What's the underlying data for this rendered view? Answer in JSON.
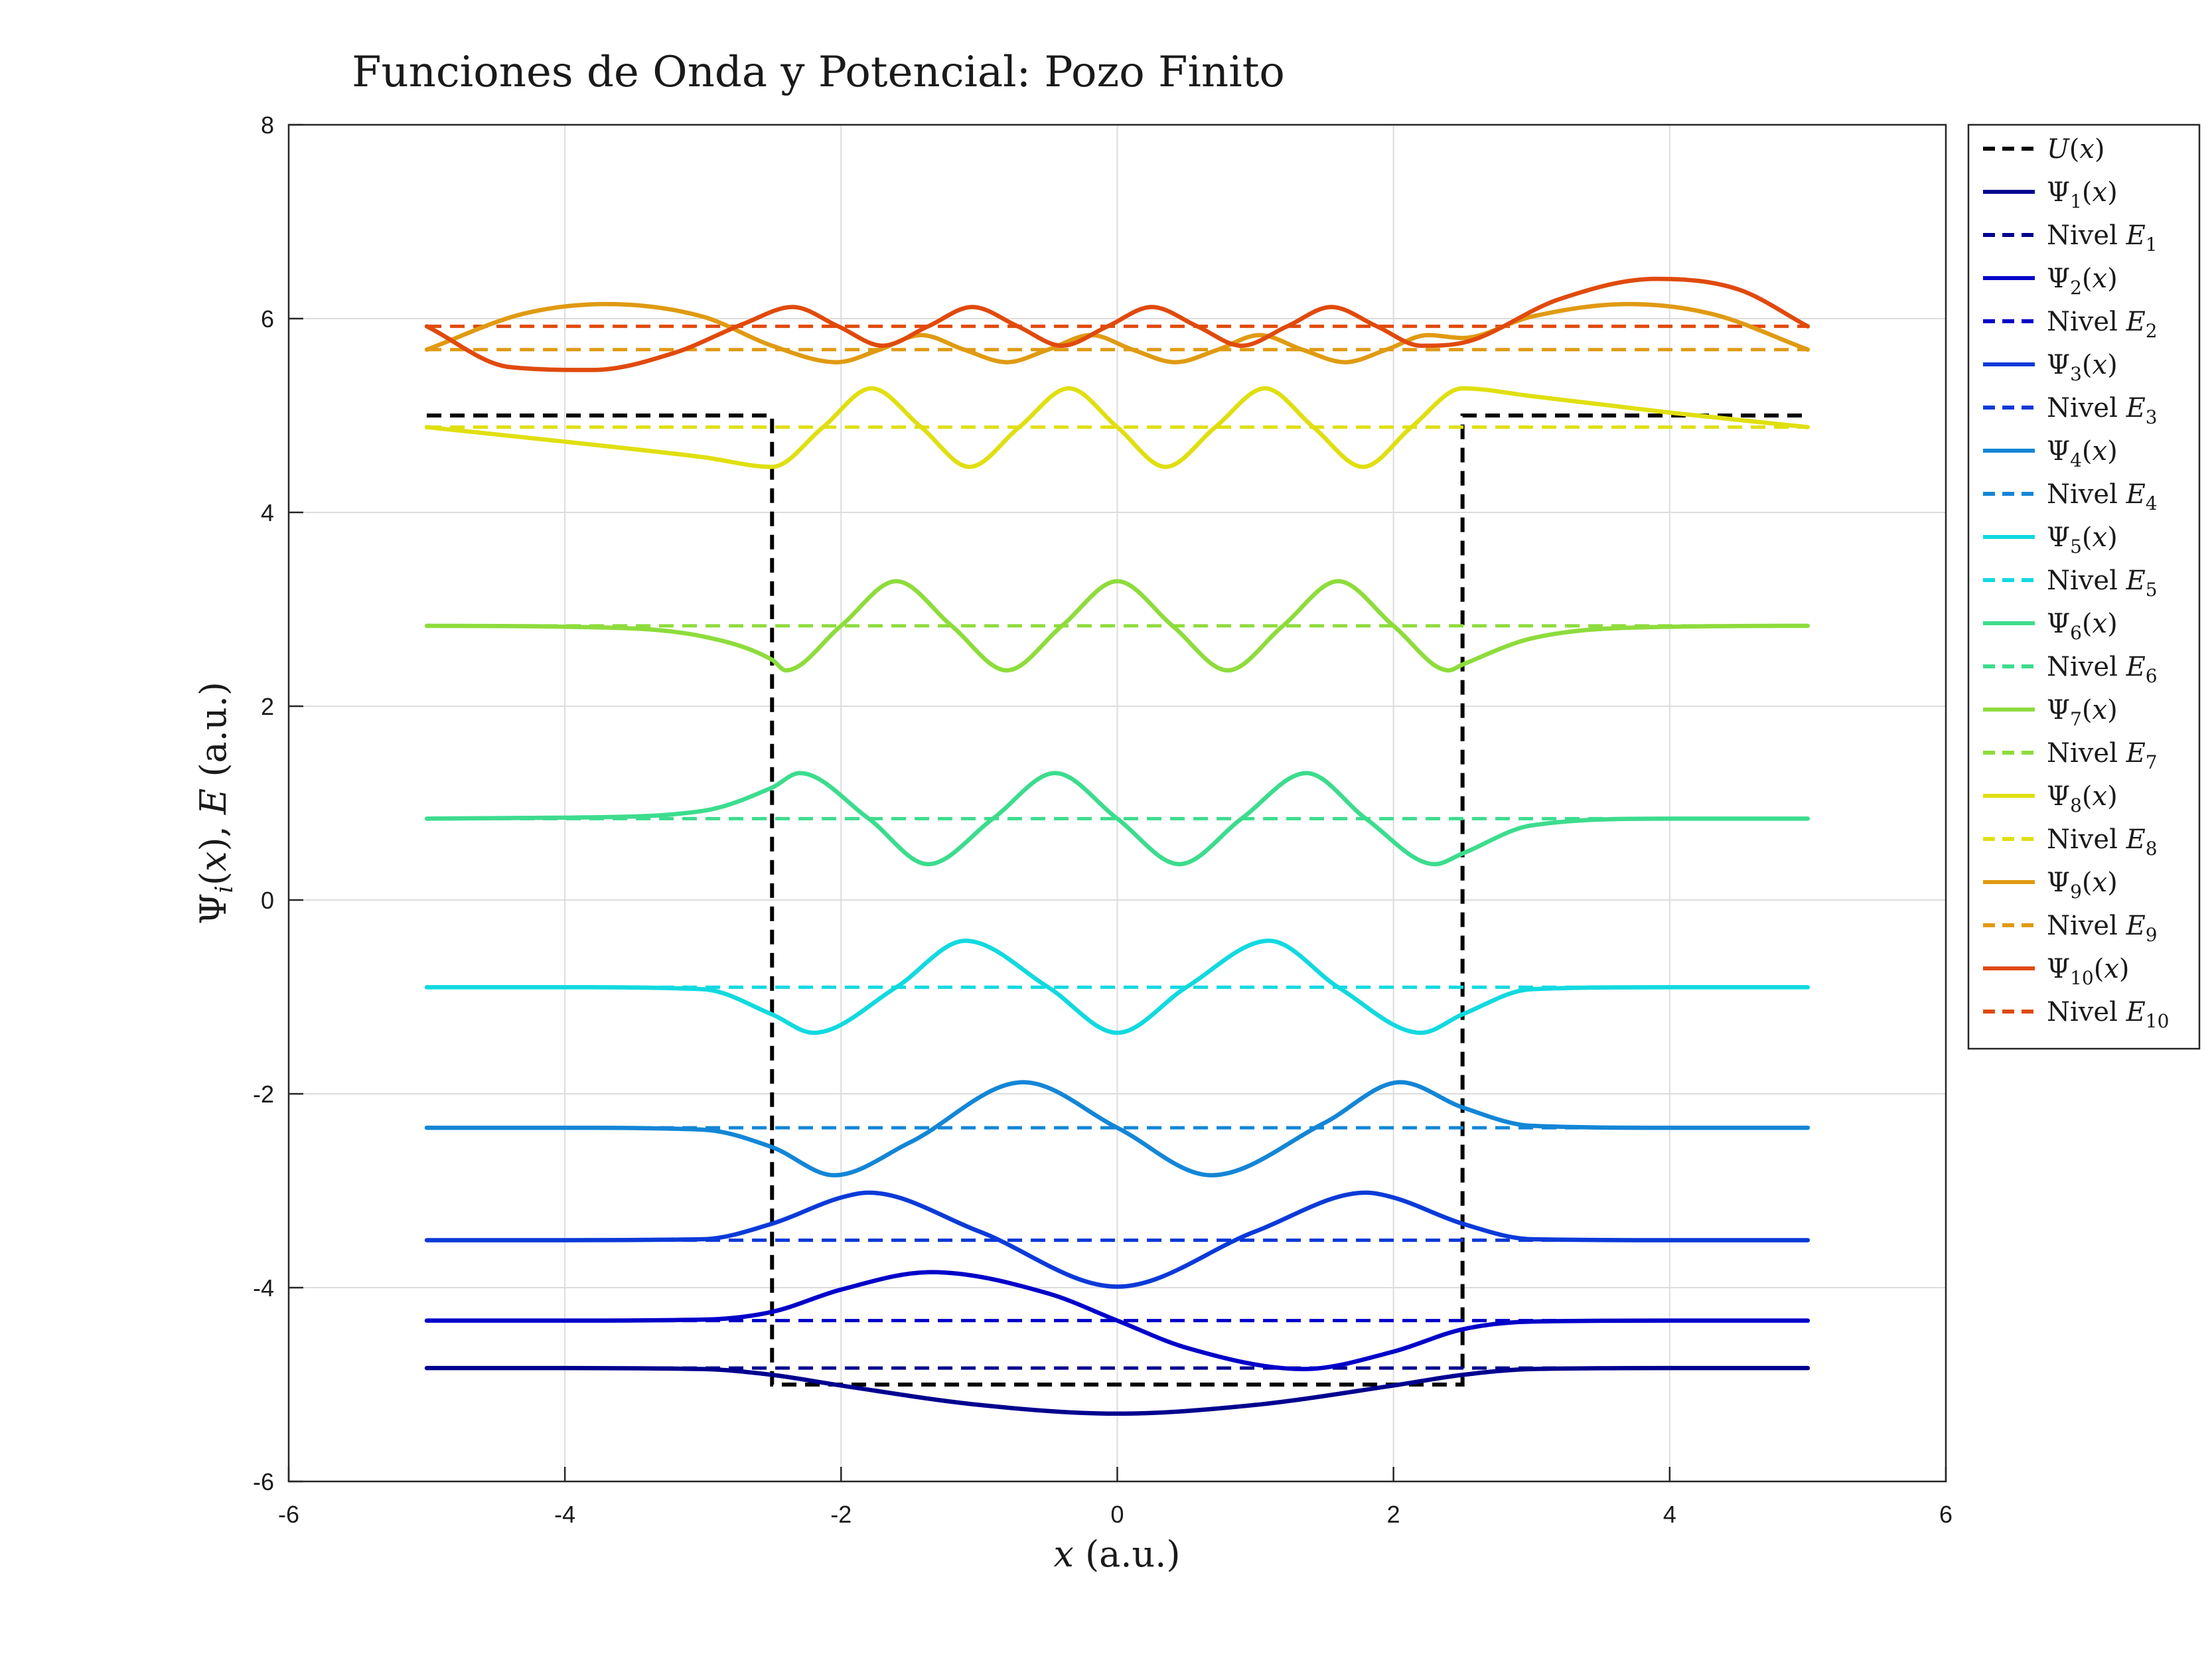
{
  "chart_data": {
    "type": "line",
    "title": "Funciones de Onda y Potencial: Pozo Finito",
    "xlabel": "x (a.u.)",
    "ylabel": "Ψ_i(x), E (a.u.)",
    "xlim": [
      -6,
      6
    ],
    "ylim": [
      -6,
      8
    ],
    "x_ticks": [
      "-6",
      "-4",
      "-2",
      "0",
      "2",
      "4",
      "6"
    ],
    "y_ticks": [
      "-6",
      "-4",
      "-2",
      "0",
      "2",
      "4",
      "6",
      "8"
    ],
    "grid": true,
    "legend_position": "outside-right",
    "potential": {
      "name": "U(x)",
      "color": "#000000",
      "x": [
        -5,
        -2.5,
        -2.5,
        2.5,
        2.5,
        5
      ],
      "y": [
        5,
        5,
        -5,
        -5,
        5,
        5
      ]
    },
    "states": [
      {
        "n": 1,
        "E": -4.83,
        "color": "#00008f",
        "psi_label": "Ψ1(x)",
        "level_label": "Nivel E1",
        "x": [
          -5,
          -4,
          -3,
          -2.5,
          -2,
          -1,
          0,
          1,
          2,
          2.5,
          3,
          4,
          5
        ],
        "y": [
          -4.83,
          -4.83,
          -4.84,
          -4.9,
          -5.01,
          -5.21,
          -5.3,
          -5.21,
          -5.01,
          -4.9,
          -4.84,
          -4.83,
          -4.83
        ]
      },
      {
        "n": 2,
        "E": -4.34,
        "color": "#0000c9",
        "psi_label": "Ψ2(x)",
        "level_label": "Nivel E2",
        "x": [
          -5,
          -4,
          -3,
          -2.5,
          -2,
          -1.35,
          -0.5,
          0,
          0.5,
          1.35,
          2,
          2.5,
          3,
          4,
          5
        ],
        "y": [
          -4.34,
          -4.34,
          -4.33,
          -4.25,
          -4.02,
          -3.84,
          -4.06,
          -4.34,
          -4.62,
          -4.84,
          -4.66,
          -4.43,
          -4.35,
          -4.34,
          -4.34
        ]
      },
      {
        "n": 3,
        "E": -3.51,
        "color": "#0b3ad8",
        "psi_label": "Ψ3(x)",
        "level_label": "Nivel E3",
        "x": [
          -5,
          -4,
          -3,
          -2.5,
          -2,
          -1.8,
          -1,
          0,
          1,
          1.8,
          2,
          2.5,
          3,
          4,
          5
        ],
        "y": [
          -3.51,
          -3.51,
          -3.5,
          -3.34,
          -3.07,
          -3.02,
          -3.42,
          -3.99,
          -3.42,
          -3.02,
          -3.07,
          -3.34,
          -3.5,
          -3.51,
          -3.51
        ]
      },
      {
        "n": 4,
        "E": -2.35,
        "color": "#1386d6",
        "psi_label": "Ψ4(x)",
        "level_label": "Nivel E4",
        "x": [
          -5,
          -4,
          -3,
          -2.5,
          -2.05,
          -1.5,
          -0.68,
          0,
          0.68,
          1.5,
          2.05,
          2.5,
          3,
          4,
          5
        ],
        "y": [
          -2.35,
          -2.35,
          -2.37,
          -2.55,
          -2.84,
          -2.5,
          -1.88,
          -2.35,
          -2.84,
          -2.3,
          -1.88,
          -2.14,
          -2.33,
          -2.35,
          -2.35
        ]
      },
      {
        "n": 5,
        "E": -0.9,
        "color": "#12d9e0",
        "psi_label": "Ψ5(x)",
        "level_label": "Nivel E5",
        "x": [
          -5,
          -4,
          -3,
          -2.5,
          -2.2,
          -1.6,
          -1.1,
          -0.5,
          0,
          0.5,
          1.1,
          1.6,
          2.2,
          2.5,
          3,
          4,
          5
        ],
        "y": [
          -0.9,
          -0.9,
          -0.92,
          -1.18,
          -1.37,
          -0.9,
          -0.42,
          -0.9,
          -1.37,
          -0.9,
          -0.42,
          -0.9,
          -1.37,
          -1.18,
          -0.92,
          -0.9,
          -0.9
        ]
      },
      {
        "n": 6,
        "E": 0.84,
        "color": "#3cdc8e",
        "psi_label": "Ψ6(x)",
        "level_label": "Nivel E6",
        "x": [
          -5,
          -4,
          -3,
          -2.5,
          -2.3,
          -1.8,
          -1.37,
          -0.9,
          -0.45,
          0,
          0.45,
          0.9,
          1.37,
          1.8,
          2.3,
          2.5,
          3,
          4,
          5
        ],
        "y": [
          0.84,
          0.85,
          0.92,
          1.16,
          1.31,
          0.84,
          0.37,
          0.84,
          1.31,
          0.84,
          0.37,
          0.84,
          1.31,
          0.84,
          0.37,
          0.48,
          0.77,
          0.84,
          0.84
        ]
      },
      {
        "n": 7,
        "E": 2.83,
        "color": "#8edc3c",
        "psi_label": "Ψ7(x)",
        "level_label": "Nivel E7",
        "x": [
          -5,
          -4,
          -3,
          -2.5,
          -2.4,
          -2,
          -1.6,
          -1.2,
          -0.8,
          -0.4,
          0,
          0.4,
          0.8,
          1.2,
          1.6,
          2,
          2.4,
          2.5,
          3,
          4,
          5
        ],
        "y": [
          2.83,
          2.82,
          2.72,
          2.48,
          2.37,
          2.83,
          3.29,
          2.83,
          2.37,
          2.83,
          3.29,
          2.83,
          2.37,
          2.83,
          3.29,
          2.83,
          2.37,
          2.43,
          2.7,
          2.82,
          2.83
        ]
      },
      {
        "n": 8,
        "E": 4.88,
        "color": "#e0df10",
        "psi_label": "Ψ8(x)",
        "level_label": "Nivel E8",
        "x": [
          -5,
          -4,
          -3,
          -2.5,
          -2.13,
          -1.78,
          -1.42,
          -1.07,
          -0.71,
          -0.35,
          0,
          0.35,
          0.71,
          1.07,
          1.42,
          1.78,
          2.13,
          2.5,
          3,
          4,
          5
        ],
        "y": [
          4.88,
          4.73,
          4.57,
          4.47,
          4.88,
          5.28,
          4.88,
          4.47,
          4.88,
          5.28,
          4.88,
          4.47,
          4.88,
          5.28,
          4.88,
          4.47,
          4.88,
          5.28,
          5.2,
          5.03,
          4.88
        ]
      },
      {
        "n": 9,
        "E": 5.68,
        "color": "#e09a12",
        "psi_label": "Ψ9(x)",
        "level_label": "Nivel E9",
        "x": [
          -5,
          -4.3,
          -3.7,
          -3,
          -2.5,
          -2.03,
          -1.72,
          -1.42,
          -1.11,
          -0.8,
          -0.5,
          -0.19,
          0.11,
          0.42,
          0.73,
          1.03,
          1.34,
          1.65,
          1.95,
          2.25,
          2.5,
          3,
          3.7,
          4.3,
          5
        ],
        "y": [
          5.68,
          6.05,
          6.15,
          6.02,
          5.72,
          5.55,
          5.68,
          5.83,
          5.68,
          5.55,
          5.68,
          5.83,
          5.68,
          5.55,
          5.68,
          5.83,
          5.68,
          5.55,
          5.68,
          5.83,
          5.8,
          6.02,
          6.15,
          6.05,
          5.68
        ]
      },
      {
        "n": 10,
        "E": 5.92,
        "color": "#e04a0c",
        "psi_label": "Ψ10(x)",
        "level_label": "Nivel E10",
        "x": [
          -5,
          -4.4,
          -3.8,
          -3.2,
          -2.7,
          -2.35,
          -2.02,
          -1.7,
          -1.37,
          -1.05,
          -0.72,
          -0.4,
          -0.07,
          0.25,
          0.58,
          0.9,
          1.23,
          1.55,
          1.88,
          2.2,
          2.5,
          3.2,
          3.9,
          4.5,
          5
        ],
        "y": [
          5.92,
          5.5,
          5.47,
          5.65,
          5.95,
          6.12,
          5.92,
          5.72,
          5.92,
          6.12,
          5.92,
          5.72,
          5.92,
          6.12,
          5.92,
          5.72,
          5.92,
          6.12,
          5.92,
          5.72,
          5.75,
          6.2,
          6.41,
          6.3,
          5.92
        ]
      }
    ]
  }
}
